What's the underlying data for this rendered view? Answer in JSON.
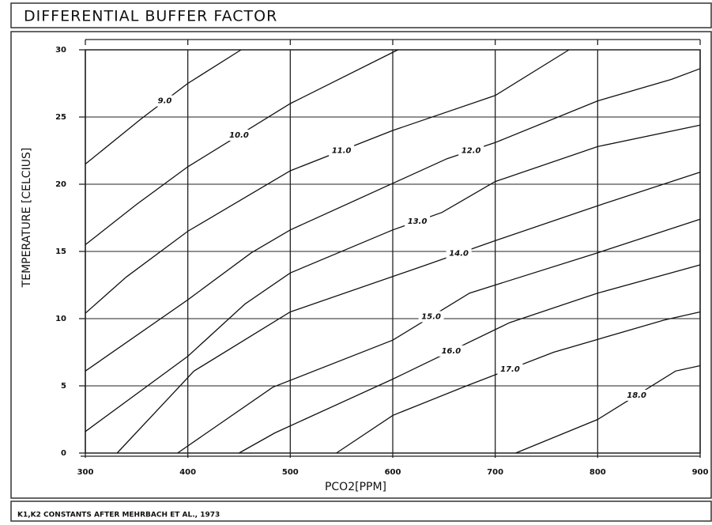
{
  "chart_data": {
    "type": "contour",
    "title": "DIFFERENTIAL BUFFER FACTOR",
    "x_label": "PCO2[PPM]",
    "y_label": "TEMPERATURE [CELCIUS]",
    "footnote": "K1,K2 CONSTANTS AFTER MEHRBACH ET AL., 1973",
    "xlim": [
      300,
      900
    ],
    "ylim": [
      0,
      30
    ],
    "xticks": [
      300,
      400,
      500,
      600,
      700,
      800,
      900
    ],
    "yticks": [
      0,
      5,
      10,
      15,
      20,
      25,
      30
    ],
    "grid": true,
    "color": "#111111",
    "series": [
      {
        "name": "9.0",
        "x": [
          300,
          355,
          400,
          452
        ],
        "y": [
          21.5,
          24.9,
          27.5,
          30
        ]
      },
      {
        "name": "10.0",
        "x": [
          300,
          350,
          400,
          500,
          605
        ],
        "y": [
          15.5,
          18.5,
          21.3,
          26,
          30
        ]
      },
      {
        "name": "11.0",
        "x": [
          300,
          340,
          400,
          500,
          600,
          700,
          772
        ],
        "y": [
          10.4,
          13.1,
          16.5,
          21,
          24,
          26.6,
          30
        ]
      },
      {
        "name": "12.0",
        "x": [
          300,
          400,
          462,
          500,
          653,
          700,
          800,
          872,
          900
        ],
        "y": [
          6.1,
          11.4,
          14.9,
          16.6,
          21.9,
          23.1,
          26.2,
          27.8,
          28.6
        ]
      },
      {
        "name": "13.0",
        "x": [
          300,
          400,
          456,
          500,
          600,
          648,
          700,
          800,
          900
        ],
        "y": [
          1.6,
          7.2,
          11.1,
          13.4,
          16.6,
          17.9,
          20.2,
          22.8,
          24.4
        ]
      },
      {
        "name": "14.0",
        "x": [
          331,
          406,
          500,
          629,
          700,
          800,
          900
        ],
        "y": [
          0,
          6.1,
          10.5,
          13.9,
          15.8,
          18.4,
          20.9
        ]
      },
      {
        "name": "15.0",
        "x": [
          390,
          483,
          600,
          675,
          800,
          900
        ],
        "y": [
          0,
          4.9,
          8.4,
          11.9,
          14.9,
          17.4
        ]
      },
      {
        "name": "16.0",
        "x": [
          450,
          485,
          600,
          714,
          800,
          900
        ],
        "y": [
          0,
          1.5,
          5.5,
          9.7,
          11.9,
          14
        ]
      },
      {
        "name": "17.0",
        "x": [
          545,
          600,
          672,
          757,
          865,
          900
        ],
        "y": [
          0,
          2.8,
          5,
          7.5,
          9.9,
          10.5
        ]
      },
      {
        "name": "18.0",
        "x": [
          720,
          800,
          876,
          900
        ],
        "y": [
          0,
          2.5,
          6.1,
          6.5
        ]
      }
    ]
  }
}
